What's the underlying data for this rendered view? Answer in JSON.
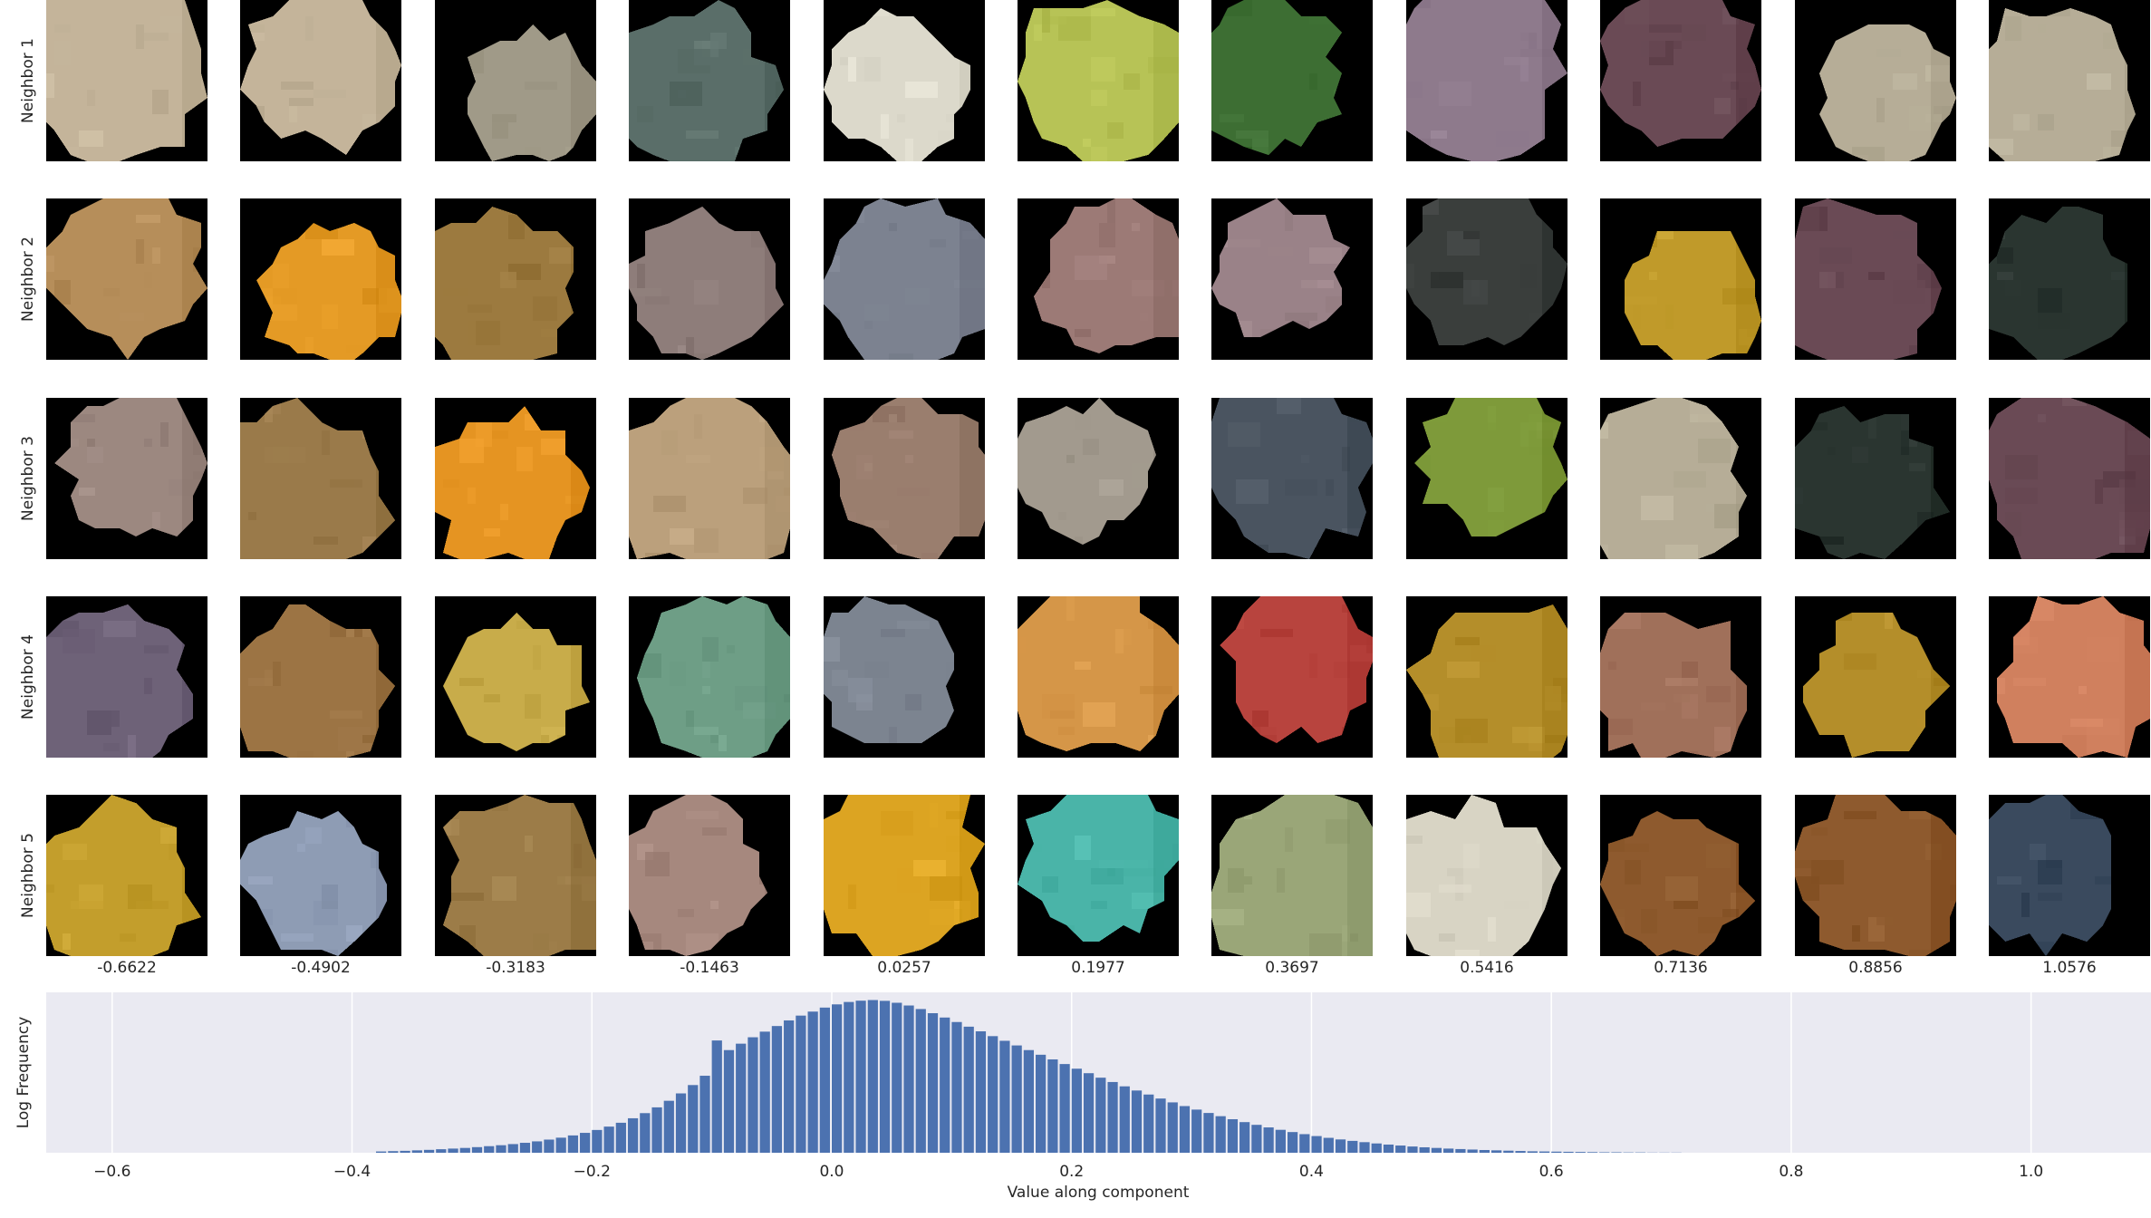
{
  "figure": {
    "row_labels": [
      "Neighbor 1",
      "Neighbor 2",
      "Neighbor 3",
      "Neighbor 4",
      "Neighbor 5"
    ],
    "column_values": [
      "-0.6622",
      "-0.4902",
      "-0.3183",
      "-0.1463",
      "0.0257",
      "0.1977",
      "0.3697",
      "0.5416",
      "0.7136",
      "0.8856",
      "1.0576"
    ],
    "patch_colors": [
      [
        "#c4b49a",
        "#c4b49a",
        "#a09a88",
        "#5a6e69",
        "#dcd9cb",
        "#b7c356",
        "#3d6e33",
        "#8e7a8c",
        "#6a4a55",
        "#b6ad97",
        "#b6ad97"
      ],
      [
        "#b68e5a",
        "#e49a25",
        "#9c7a3f",
        "#8e7d7a",
        "#7c8290",
        "#9c7a76",
        "#9a8288",
        "#3a3e3c",
        "#c09a2a",
        "#6a4a55",
        "#2a3530"
      ],
      [
        "#9c8880",
        "#9a7a4a",
        "#e59422",
        "#bba07c",
        "#9a7e6e",
        "#a29a8e",
        "#4a5460",
        "#7e9a3a",
        "#b6ad97",
        "#2a3530",
        "#6a4a55"
      ],
      [
        "#6e6278",
        "#9c7444",
        "#c8ac4a",
        "#6e9e86",
        "#7c8490",
        "#d59648",
        "#b8443e",
        "#b48e2a",
        "#a0705a",
        "#b48e2a",
        "#d0805e"
      ],
      [
        "#c39e2c",
        "#8e9cb4",
        "#9c7c48",
        "#a6887e",
        "#dca422",
        "#4ab4a8",
        "#9aa678",
        "#d8d4c4",
        "#8e5a2e",
        "#8e5a2e",
        "#3a4a5e"
      ]
    ],
    "histogram": {
      "type": "bar",
      "xlabel": "Value along component",
      "ylabel": "Log Frequency",
      "x_ticks": [
        "−0.6",
        "−0.4",
        "−0.2",
        "0.0",
        "0.2",
        "0.4",
        "0.6",
        "0.8",
        "1.0"
      ],
      "x_tick_values": [
        -0.6,
        -0.4,
        -0.2,
        0.0,
        0.2,
        0.4,
        0.6,
        0.8,
        1.0
      ],
      "xlim": [
        -0.655,
        1.1
      ],
      "ylim": [
        0,
        1.0
      ],
      "bar_color": "#4c72b0",
      "background": "#eaeaf2",
      "bin_start": -0.38,
      "bin_width": 0.01,
      "values": [
        0.008,
        0.01,
        0.012,
        0.015,
        0.018,
        0.022,
        0.026,
        0.03,
        0.035,
        0.041,
        0.047,
        0.054,
        0.062,
        0.071,
        0.082,
        0.094,
        0.108,
        0.124,
        0.142,
        0.163,
        0.187,
        0.215,
        0.247,
        0.283,
        0.324,
        0.37,
        0.422,
        0.48,
        0.7,
        0.64,
        0.68,
        0.72,
        0.755,
        0.79,
        0.825,
        0.855,
        0.88,
        0.905,
        0.925,
        0.94,
        0.948,
        0.952,
        0.947,
        0.935,
        0.918,
        0.896,
        0.87,
        0.843,
        0.815,
        0.786,
        0.757,
        0.727,
        0.698,
        0.669,
        0.64,
        0.611,
        0.582,
        0.553,
        0.524,
        0.496,
        0.468,
        0.441,
        0.414,
        0.388,
        0.363,
        0.338,
        0.314,
        0.291,
        0.269,
        0.248,
        0.228,
        0.209,
        0.191,
        0.174,
        0.158,
        0.143,
        0.129,
        0.116,
        0.104,
        0.093,
        0.083,
        0.074,
        0.066,
        0.058,
        0.051,
        0.045,
        0.039,
        0.034,
        0.03,
        0.026,
        0.023,
        0.02,
        0.017,
        0.015,
        0.013,
        0.011,
        0.009,
        0.008,
        0.007,
        0.006,
        0.005,
        0.004,
        0.003,
        0.003,
        0.002,
        0.002,
        0.001,
        0.001,
        0.001
      ]
    }
  },
  "chart_data": {
    "type": "bar",
    "xlabel": "Value along component",
    "ylabel": "Log Frequency",
    "xlim": [
      -0.655,
      1.1
    ],
    "x_ticks": [
      -0.6,
      -0.4,
      -0.2,
      0.0,
      0.2,
      0.4,
      0.6,
      0.8,
      1.0
    ],
    "grid": true,
    "bins_start": -0.38,
    "bins_width": 0.01,
    "description_note": "",
    "column_values": [
      -0.6622,
      -0.4902,
      -0.3183,
      -0.1463,
      0.0257,
      0.1977,
      0.3697,
      0.5416,
      0.7136,
      0.8856,
      1.0576
    ]
  }
}
